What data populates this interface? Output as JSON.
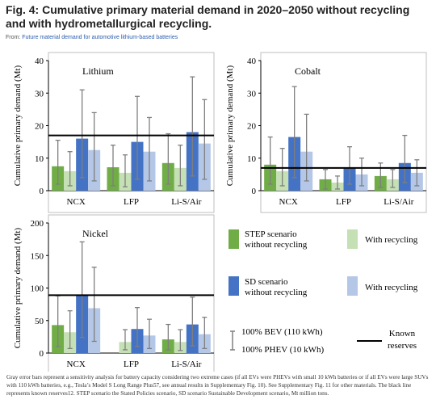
{
  "figure": {
    "title": "Fig. 4: Cumulative primary material demand in 2020–2050 without recycling and with hydrometallurgical recycling.",
    "from_prefix": "From: ",
    "from_link": "Future material demand for automotive lithium-based batteries",
    "caption": "Gray error bars represent a sensitivity analysis for battery capacity considering two extreme cases (if all EVs were PHEVs with small 10 kWh batteries or if all EVs were large SUVs with 110 kWh batteries, e.g., Tesla’s Model S Long Range Plus57, see annual results in Supplementary Fig. 10). See Supplementary Fig. 11 for other materials. The black line represents known reserves12. STEP scenario the Stated Policies scenario, SD scenario Sustainable Development scenario, Mt million tons."
  },
  "colors": {
    "step": "#70ad47",
    "step_recycling": "#c5e0b4",
    "sd": "#4472c4",
    "sd_recycling": "#b4c7e7",
    "error_bar": "#7f7f7f",
    "reserves": "#000000"
  },
  "legend": {
    "step_line1": "STEP scenario",
    "step_line2": "without recycling",
    "step_recycling": "With recycling",
    "sd_line1": "SD scenario",
    "sd_line2": "without recycling",
    "sd_recycling": "With recycling",
    "err_top": "100% BEV (110 kWh)",
    "err_bottom": "100% PHEV (10 kWh)",
    "reserves_line1": "Known",
    "reserves_line2": "reserves"
  },
  "chart_data": [
    {
      "type": "bar",
      "title": "Lithium",
      "ylabel": "Cumulative primary demand (Mt)",
      "ylim": [
        0,
        40
      ],
      "yticks": [
        0,
        10,
        20,
        30,
        40
      ],
      "categories": [
        "NCX",
        "LFP",
        "Li-S/Air"
      ],
      "reserves": 17,
      "series": [
        {
          "name": "STEP scenario without recycling",
          "values": [
            7.5,
            7.2,
            8.5
          ],
          "err_low": [
            2,
            1.5,
            2
          ],
          "err_high": [
            15.5,
            14,
            17.5
          ]
        },
        {
          "name": "With recycling",
          "values": [
            6,
            5.5,
            7
          ],
          "err_low": [
            1.5,
            1.2,
            1.5
          ],
          "err_high": [
            12,
            11,
            14
          ]
        },
        {
          "name": "SD scenario without recycling",
          "values": [
            16,
            15,
            18
          ],
          "err_low": [
            4,
            3.5,
            4.5
          ],
          "err_high": [
            31,
            29,
            35
          ]
        },
        {
          "name": "With recycling",
          "values": [
            12.5,
            12,
            14.5
          ],
          "err_low": [
            3,
            3,
            3.5
          ],
          "err_high": [
            24,
            22.5,
            28
          ]
        }
      ]
    },
    {
      "type": "bar",
      "title": "Cobalt",
      "ylabel": "Cumulative primary demand (Mt)",
      "ylim": [
        0,
        40
      ],
      "yticks": [
        0,
        10,
        20,
        30,
        40
      ],
      "categories": [
        "NCX",
        "LFP",
        "Li-S/Air"
      ],
      "reserves": 7,
      "series": [
        {
          "name": "STEP scenario without recycling",
          "values": [
            8,
            3.5,
            4.5
          ],
          "err_low": [
            2,
            0.5,
            1
          ],
          "err_high": [
            16.5,
            6.5,
            8.5
          ]
        },
        {
          "name": "With recycling",
          "values": [
            6,
            2.5,
            3.5
          ],
          "err_low": [
            1.5,
            0.5,
            1
          ],
          "err_high": [
            13,
            4.5,
            6.5
          ]
        },
        {
          "name": "SD scenario without recycling",
          "values": [
            16.5,
            7,
            8.5
          ],
          "err_low": [
            4,
            2,
            2.5
          ],
          "err_high": [
            32,
            13.5,
            17
          ]
        },
        {
          "name": "With recycling",
          "values": [
            12,
            5,
            5.5
          ],
          "err_low": [
            3,
            1.5,
            1.5
          ],
          "err_high": [
            23.5,
            10,
            9.5
          ]
        }
      ]
    },
    {
      "type": "bar",
      "title": "Nickel",
      "ylabel": "Cumulative primary demand (Mt)",
      "ylim": [
        0,
        200
      ],
      "yticks": [
        0,
        50,
        100,
        150,
        200
      ],
      "categories": [
        "NCX",
        "LFP",
        "Li-S/Air"
      ],
      "reserves": 89,
      "series": [
        {
          "name": "STEP scenario without recycling",
          "values": [
            43,
            0,
            21
          ],
          "err_low": [
            10,
            0,
            5
          ],
          "err_high": [
            88,
            0,
            44
          ]
        },
        {
          "name": "With recycling",
          "values": [
            32,
            17,
            17
          ],
          "err_low": [
            7,
            5,
            4
          ],
          "err_high": [
            65,
            36,
            36
          ]
        },
        {
          "name": "SD scenario without recycling",
          "values": [
            89,
            37,
            44
          ],
          "err_low": [
            24,
            10,
            11
          ],
          "err_high": [
            171,
            70,
            86
          ]
        },
        {
          "name": "With recycling",
          "values": [
            69,
            27,
            29
          ],
          "err_low": [
            18,
            7,
            7
          ],
          "err_high": [
            132,
            52,
            55
          ]
        }
      ]
    }
  ]
}
